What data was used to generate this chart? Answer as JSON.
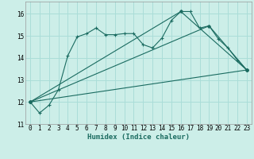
{
  "xlabel": "Humidex (Indice chaleur)",
  "bg_color": "#cceee8",
  "grid_color": "#aaddd8",
  "line_color": "#1a6b60",
  "xlim": [
    -0.5,
    23.5
  ],
  "ylim": [
    11.0,
    16.55
  ],
  "xticks": [
    0,
    1,
    2,
    3,
    4,
    5,
    6,
    7,
    8,
    9,
    10,
    11,
    12,
    13,
    14,
    15,
    16,
    17,
    18,
    19,
    20,
    21,
    22,
    23
  ],
  "yticks": [
    11,
    12,
    13,
    14,
    15,
    16
  ],
  "series1_x": [
    0,
    1,
    2,
    3,
    4,
    5,
    6,
    7,
    8,
    9,
    10,
    11,
    12,
    13,
    14,
    15,
    16,
    17,
    18,
    19,
    20,
    21,
    22,
    23
  ],
  "series1_y": [
    12.0,
    11.5,
    11.85,
    12.55,
    14.1,
    14.95,
    15.1,
    15.35,
    15.05,
    15.05,
    15.1,
    15.1,
    14.6,
    14.45,
    14.9,
    15.7,
    16.1,
    16.1,
    15.35,
    15.45,
    14.85,
    14.45,
    13.9,
    13.45
  ],
  "series2_x": [
    0,
    23
  ],
  "series2_y": [
    12.0,
    13.45
  ],
  "series3_x": [
    0,
    19,
    23
  ],
  "series3_y": [
    12.0,
    15.45,
    13.45
  ],
  "series4_x": [
    0,
    16,
    23
  ],
  "series4_y": [
    12.0,
    16.1,
    13.45
  ],
  "xlabel_fontsize": 6.5,
  "tick_fontsize": 5.5
}
